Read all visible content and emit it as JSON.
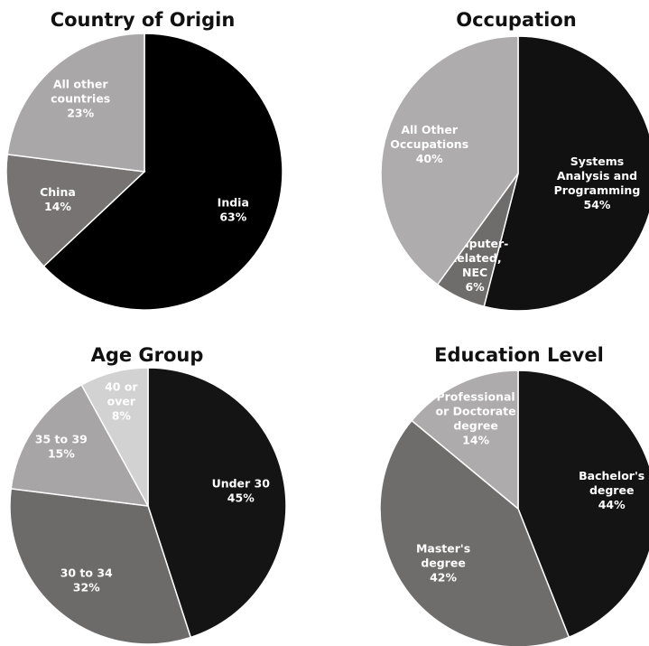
{
  "chart_data": [
    {
      "type": "pie",
      "title": "Country of Origin",
      "slices": [
        {
          "label": [
            "India",
            "63%"
          ],
          "value": 63,
          "color": "#000000",
          "text_color": "#ffffff"
        },
        {
          "label": [
            "China",
            "14%"
          ],
          "value": 14,
          "color": "#777373",
          "text_color": "#ffffff"
        },
        {
          "label": [
            "All other",
            "countries",
            "23%"
          ],
          "value": 23,
          "color": "#a9a7a7",
          "text_color": "#ffffff"
        }
      ]
    },
    {
      "type": "pie",
      "title": "Occupation",
      "slices": [
        {
          "label": [
            "Systems",
            "Analysis and",
            "Programming",
            "54%"
          ],
          "value": 54,
          "color": "#111111",
          "text_color": "#ffffff"
        },
        {
          "label": [
            "Computer-",
            "Related,",
            "NEC",
            "6%"
          ],
          "value": 6,
          "color": "#6f6c6c",
          "text_color": "#ffffff"
        },
        {
          "label": [
            "All Other",
            "Occupations",
            "40%"
          ],
          "value": 40,
          "color": "#aeacac",
          "text_color": "#ffffff"
        }
      ]
    },
    {
      "type": "pie",
      "title": "Age Group",
      "slices": [
        {
          "label": [
            "Under 30",
            "45%"
          ],
          "value": 45,
          "color": "#141414",
          "text_color": "#ffffff"
        },
        {
          "label": [
            "30 to 34",
            "32%"
          ],
          "value": 32,
          "color": "#6d6a6a",
          "text_color": "#ffffff"
        },
        {
          "label": [
            "35 to 39",
            "15%"
          ],
          "value": 15,
          "color": "#a7a5a5",
          "text_color": "#ffffff"
        },
        {
          "label": [
            "40 or",
            "over",
            "8%"
          ],
          "value": 8,
          "color": "#d3d2d2",
          "text_color": "#ffffff"
        }
      ]
    },
    {
      "type": "pie",
      "title": "Education Level",
      "slices": [
        {
          "label": [
            "Bachelor's",
            "degree",
            "44%"
          ],
          "value": 44,
          "color": "#141414",
          "text_color": "#ffffff"
        },
        {
          "label": [
            "Master's",
            "degree",
            "42%"
          ],
          "value": 42,
          "color": "#6f6c6c",
          "text_color": "#ffffff"
        },
        {
          "label": [
            "Professional",
            "or Doctorate",
            "degree",
            "14%"
          ],
          "value": 14,
          "color": "#adabab",
          "text_color": "#ffffff"
        }
      ]
    }
  ]
}
